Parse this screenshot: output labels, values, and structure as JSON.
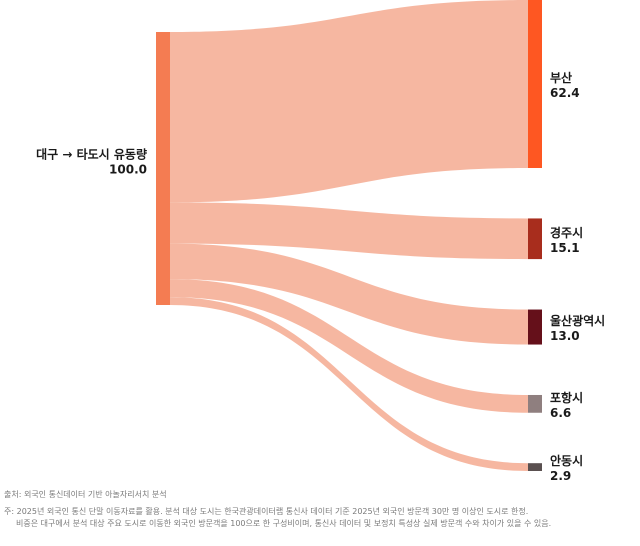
{
  "chart_data": {
    "type": "sankey",
    "title": "",
    "source": {
      "name": "대구 → 타도시 유동량",
      "value": 100.0,
      "color": "#f47c52"
    },
    "targets": [
      {
        "name": "부산",
        "value": 62.4,
        "color": "#fe5722"
      },
      {
        "name": "경주시",
        "value": 15.1,
        "color": "#a82d1d"
      },
      {
        "name": "울산광역시",
        "value": 13.0,
        "color": "#65101a"
      },
      {
        "name": "포항시",
        "value": 6.6,
        "color": "#8f7f7f"
      },
      {
        "name": "안동시",
        "value": 2.9,
        "color": "#5a5050"
      }
    ],
    "link_color": "#f5b39c"
  },
  "footer": {
    "source": "출처: 외국인 통신데이터 기반 아놀자리서치 분석",
    "note1": "주: 2025년 외국인 통신 단말 이동자료를 활용. 분석 대상 도시는 한국관광데이터랩 통신사 데이터 기준 2025년 외국인 방문객 30만 명 이상인 도시로 한정.",
    "note2": "비중은 대구에서 분석 대상 주요 도시로 이동한 외국인 방문객을 100으로 한 구성비이며, 통신사 데이터 및 보정치 특성상 실제 방문객 수와 차이가 있을 수 있음."
  }
}
